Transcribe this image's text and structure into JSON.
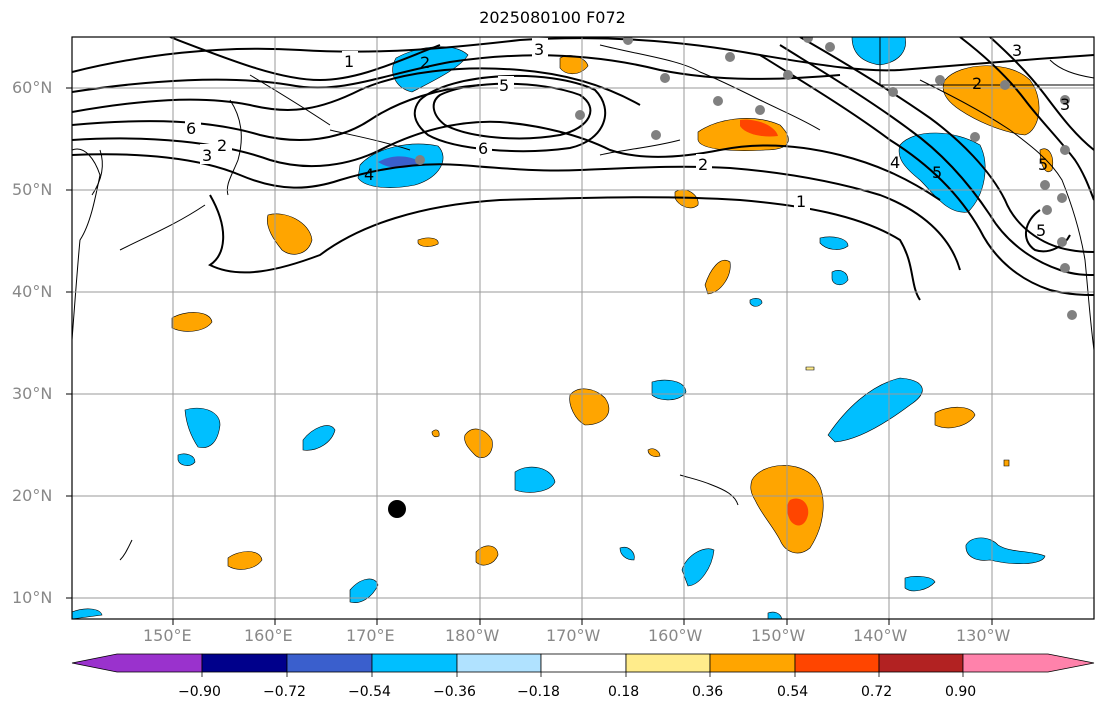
{
  "title": "2025080100 F072",
  "lat_labels": [
    "60°N",
    "50°N",
    "40°N",
    "30°N",
    "20°N",
    "10°N"
  ],
  "lon_labels": [
    "150°E",
    "160°E",
    "170°E",
    "180°W",
    "170°W",
    "160°W",
    "150°W",
    "140°W",
    "130°W"
  ],
  "contour_labels": [
    "1",
    "2",
    "3",
    "6",
    "5",
    "6",
    "3",
    "2",
    "4",
    "2",
    "5",
    "4",
    "1",
    "3",
    "5",
    "3",
    "2",
    "5"
  ],
  "colorbar": {
    "ticks": [
      "−0.90",
      "−0.72",
      "−0.54",
      "−0.36",
      "−0.18",
      "0.18",
      "0.36",
      "0.54",
      "0.72",
      "0.90"
    ],
    "colors": [
      "#9a32cd",
      "#00008b",
      "#3a5fcd",
      "#00bfff",
      "#b0e2ff",
      "#ffffff",
      "#ffec8b",
      "#ffa500",
      "#ff4500",
      "#b22222",
      "#ff82ab"
    ]
  }
}
